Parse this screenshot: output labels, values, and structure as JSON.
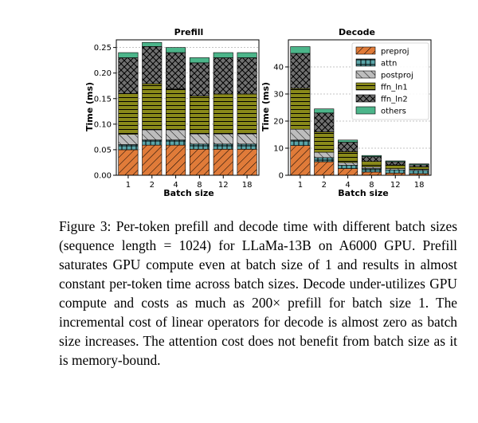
{
  "chart_data": [
    {
      "type": "bar",
      "stacked": true,
      "title": "Prefill",
      "xlabel": "Batch size",
      "ylabel": "Time (ms)",
      "categories": [
        "1",
        "2",
        "4",
        "8",
        "12",
        "18"
      ],
      "ylim": [
        0,
        0.265
      ],
      "yticks": [
        0.0,
        0.05,
        0.1,
        0.15,
        0.2,
        0.25
      ],
      "ytick_labels": [
        "0.00",
        "0.05",
        "0.10",
        "0.15",
        "0.20",
        "0.25"
      ],
      "grid": true,
      "series": [
        {
          "name": "preproj",
          "values": [
            0.05,
            0.059,
            0.059,
            0.051,
            0.051,
            0.051
          ]
        },
        {
          "name": "attn",
          "values": [
            0.01,
            0.01,
            0.01,
            0.01,
            0.01,
            0.01
          ]
        },
        {
          "name": "postproj",
          "values": [
            0.02,
            0.02,
            0.02,
            0.02,
            0.02,
            0.02
          ]
        },
        {
          "name": "ffn_ln1",
          "values": [
            0.08,
            0.09,
            0.08,
            0.074,
            0.078,
            0.078
          ]
        },
        {
          "name": "ffn_ln2",
          "values": [
            0.07,
            0.073,
            0.071,
            0.065,
            0.071,
            0.071
          ]
        },
        {
          "name": "others",
          "values": [
            0.01,
            0.008,
            0.01,
            0.01,
            0.01,
            0.01
          ]
        }
      ]
    },
    {
      "type": "bar",
      "stacked": true,
      "title": "Decode",
      "xlabel": "Batch size",
      "ylabel": "Time (ms)",
      "categories": [
        "1",
        "2",
        "4",
        "8",
        "12",
        "18"
      ],
      "ylim": [
        0,
        50
      ],
      "yticks": [
        0,
        10,
        20,
        30,
        40
      ],
      "ytick_labels": [
        "0",
        "10",
        "20",
        "30",
        "40"
      ],
      "grid": true,
      "legend_position": "top-right",
      "series": [
        {
          "name": "preproj",
          "values": [
            11.0,
            5.0,
            2.5,
            1.2,
            0.8,
            0.6
          ]
        },
        {
          "name": "attn",
          "values": [
            2.0,
            1.5,
            1.2,
            1.3,
            1.2,
            1.2
          ]
        },
        {
          "name": "postproj",
          "values": [
            4.0,
            2.0,
            1.0,
            0.6,
            0.5,
            0.4
          ]
        },
        {
          "name": "ffn_ln1",
          "values": [
            15.0,
            7.5,
            4.0,
            2.0,
            1.3,
            0.9
          ]
        },
        {
          "name": "ffn_ln2",
          "values": [
            13.0,
            7.0,
            3.5,
            1.8,
            1.2,
            0.8
          ]
        },
        {
          "name": "others",
          "values": [
            2.5,
            1.5,
            0.8,
            0.4,
            0.3,
            0.3
          ]
        }
      ]
    }
  ],
  "series_colors": {
    "preproj": "#e07b39",
    "attn": "#5aa5a8",
    "postproj": "#bdbdbd",
    "ffn_ln1": "#8a8a1a",
    "ffn_ln2": "#707070",
    "others": "#4cb58a"
  },
  "caption": "Figure 3: Per-token prefill and decode time with different batch sizes (sequence length = 1024) for LLaMa-13B on A6000 GPU. Prefill saturates GPU compute even at batch size of 1 and results in almost constant per-token time across batch sizes. Decode under-utilizes GPU compute and costs as much as 200× prefill for batch size 1. The incremental cost of linear operators for decode is almost zero as batch size increases. The attention cost does not benefit from batch size as it is memory-bound."
}
